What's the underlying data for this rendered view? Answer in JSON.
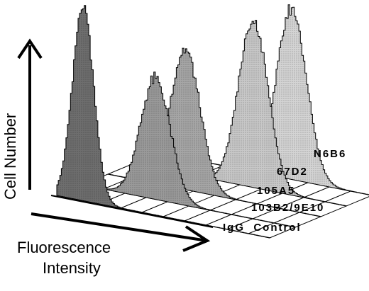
{
  "chart_data": {
    "type": "area",
    "style": "3d-stacked-histogram",
    "xlabel": "Fluorescence Intensity",
    "xlabel_lines": [
      "Fluorescence",
      "Intensity"
    ],
    "ylabel": "Cell Number",
    "grid": true,
    "series": [
      {
        "name": "IgG  Control",
        "peak_intensity": 0.12,
        "peak_height": 1.0,
        "width": 0.05,
        "fill": "#6e6e6e"
      },
      {
        "name": "103B2/9E10",
        "peak_intensity": 0.34,
        "peak_height": 0.62,
        "width": 0.07,
        "fill": "#9a9a9a"
      },
      {
        "name": "105A5",
        "peak_intensity": 0.36,
        "peak_height": 0.72,
        "width": 0.07,
        "fill": "#a6a6a6"
      },
      {
        "name": "67D2",
        "peak_intensity": 0.56,
        "peak_height": 0.86,
        "width": 0.07,
        "fill": "#c8c8c8"
      },
      {
        "name": "N6B6",
        "peak_intensity": 0.62,
        "peak_height": 0.88,
        "width": 0.07,
        "fill": "#d4d4d4"
      }
    ]
  }
}
